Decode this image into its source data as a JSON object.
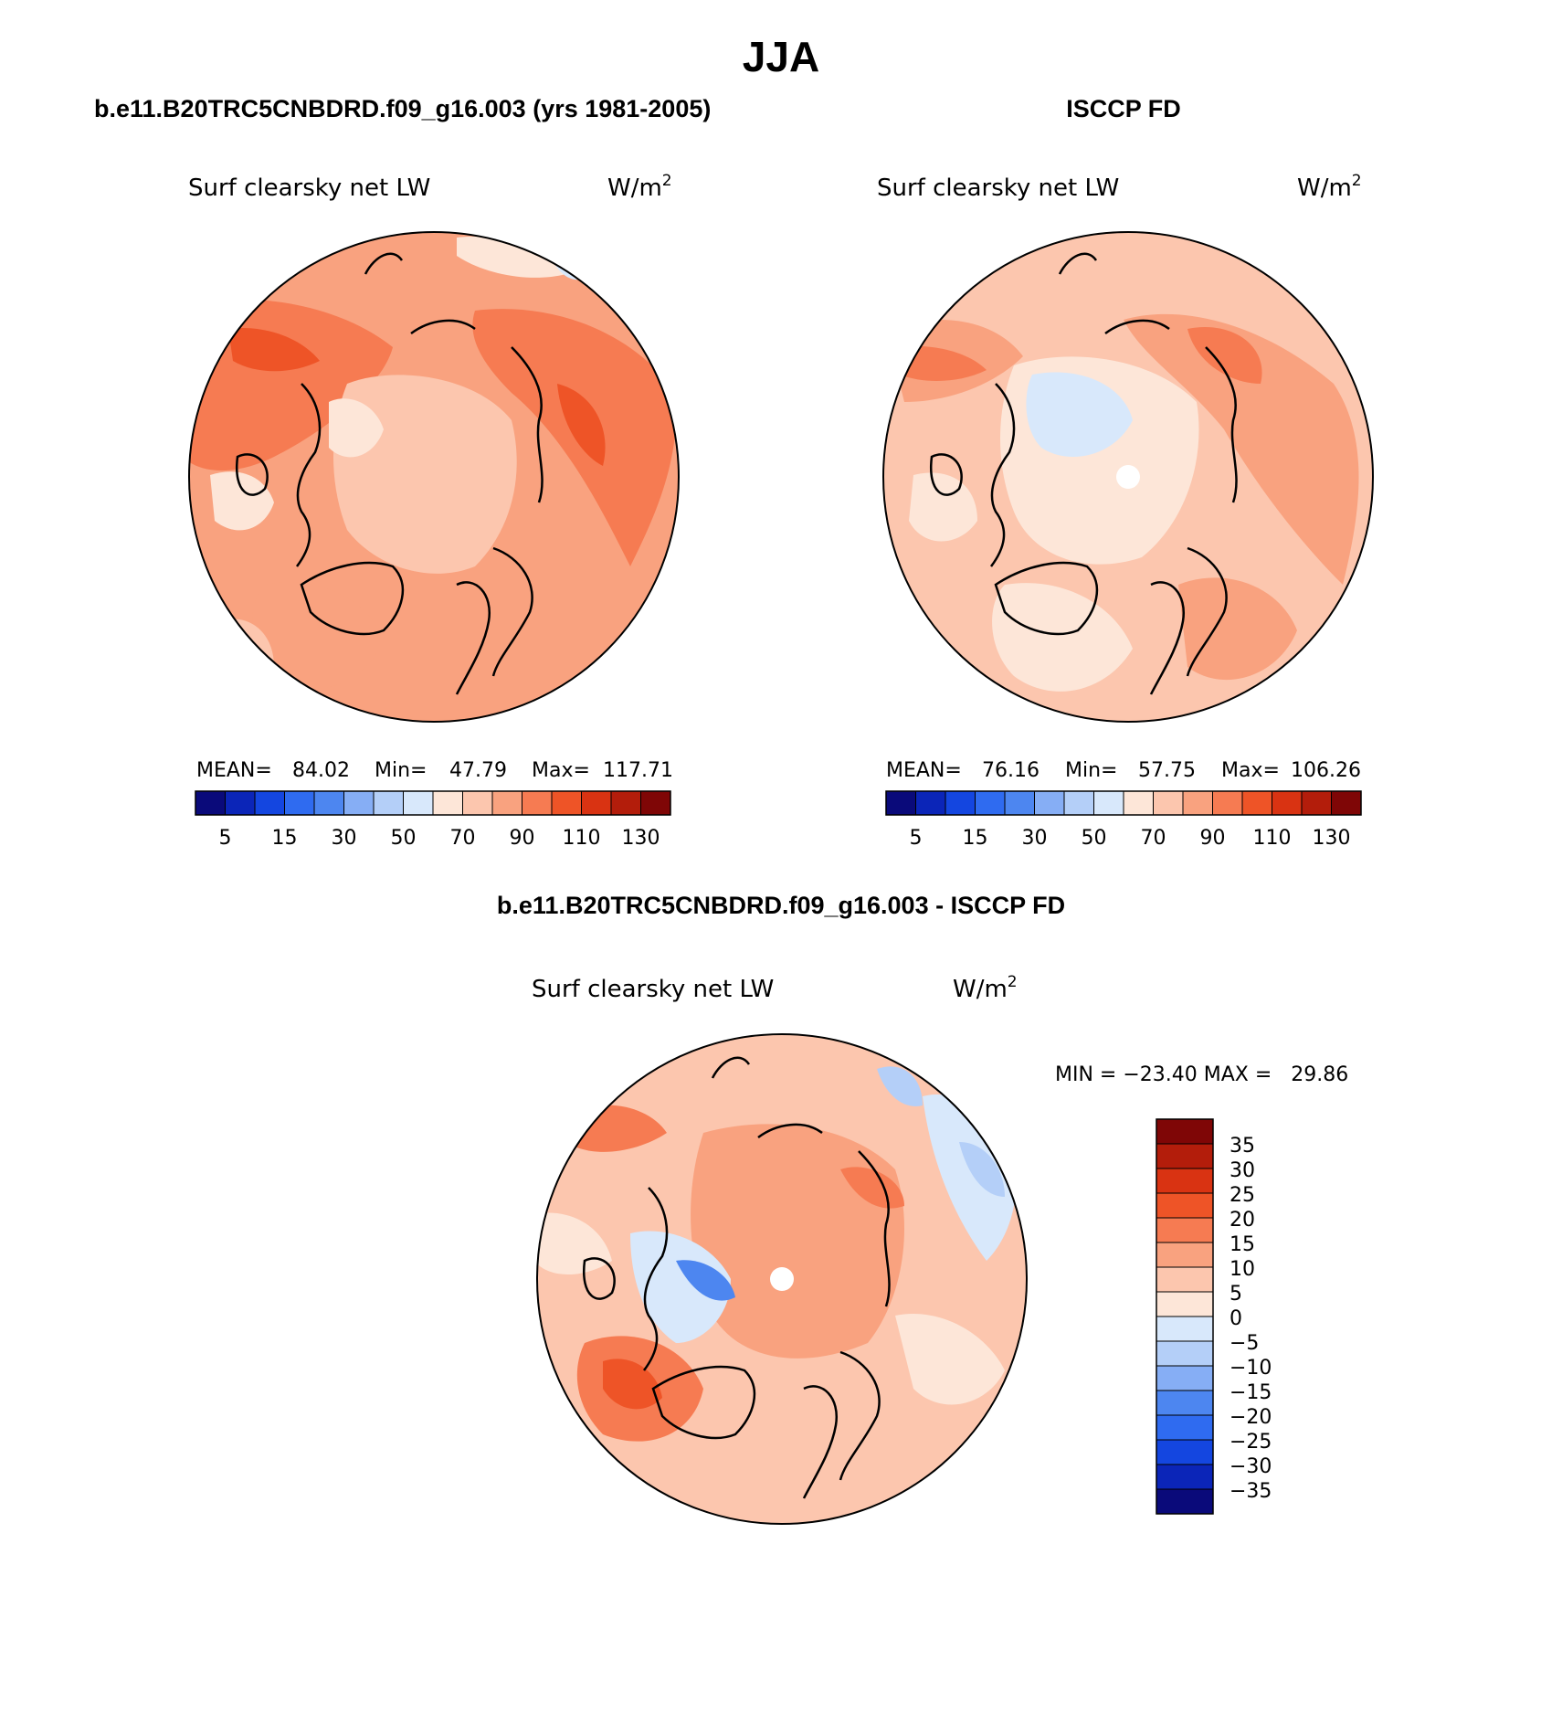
{
  "figure": {
    "title": "JJA"
  },
  "chart_data": [
    {
      "type": "heatmap",
      "projection": "north polar stereographic",
      "title": "b.e11.B20TRC5CNBDRD.f09_g16.003 (yrs 1981-2005)",
      "variable": "Surf clearsky net LW",
      "units_base": "W/m",
      "units_exp": "2",
      "stats": {
        "mean_label": "MEAN=",
        "mean": "84.02",
        "min_label": "Min=",
        "min": "47.79",
        "max_label": "Max=",
        "max": "117.71"
      },
      "colorbar_ticks": [
        "5",
        "15",
        "30",
        "50",
        "70",
        "90",
        "110",
        "130"
      ],
      "colors": [
        "#0a0a7a",
        "#0b25b8",
        "#1446e0",
        "#2f6bf0",
        "#4d86f0",
        "#86aef5",
        "#b4cff8",
        "#d8e8fb",
        "#fde6d8",
        "#fcc6ae",
        "#f9a27f",
        "#f67b52",
        "#ee5427",
        "#d93312",
        "#b31d0b",
        "#7f0606"
      ]
    },
    {
      "type": "heatmap",
      "projection": "north polar stereographic",
      "title": "ISCCP FD",
      "variable": "Surf clearsky net LW",
      "units_base": "W/m",
      "units_exp": "2",
      "stats": {
        "mean_label": "MEAN=",
        "mean": "76.16",
        "min_label": "Min=",
        "min": "57.75",
        "max_label": "Max=",
        "max": "106.26"
      },
      "colorbar_ticks": [
        "5",
        "15",
        "30",
        "50",
        "70",
        "90",
        "110",
        "130"
      ],
      "colors": [
        "#0a0a7a",
        "#0b25b8",
        "#1446e0",
        "#2f6bf0",
        "#4d86f0",
        "#86aef5",
        "#b4cff8",
        "#d8e8fb",
        "#fde6d8",
        "#fcc6ae",
        "#f9a27f",
        "#f67b52",
        "#ee5427",
        "#d93312",
        "#b31d0b",
        "#7f0606"
      ]
    },
    {
      "type": "heatmap",
      "projection": "north polar stereographic",
      "title": "b.e11.B20TRC5CNBDRD.f09_g16.003 - ISCCP FD",
      "variable": "Surf clearsky net LW",
      "units_base": "W/m",
      "units_exp": "2",
      "minmax_text": "MIN = −23.40 MAX =   29.86",
      "min": -23.4,
      "max": 29.86,
      "colorbar_ticks": [
        "35",
        "30",
        "25",
        "20",
        "15",
        "10",
        "5",
        "0",
        "−5",
        "−10",
        "−15",
        "−20",
        "−25",
        "−30",
        "−35"
      ],
      "colors": [
        "#7f0606",
        "#b31d0b",
        "#d93312",
        "#ee5427",
        "#f67b52",
        "#f9a27f",
        "#fcc6ae",
        "#fde6d8",
        "#d8e8fb",
        "#b4cff8",
        "#86aef5",
        "#4d86f0",
        "#2f6bf0",
        "#1446e0",
        "#0b25b8",
        "#0a0a7a"
      ]
    }
  ]
}
